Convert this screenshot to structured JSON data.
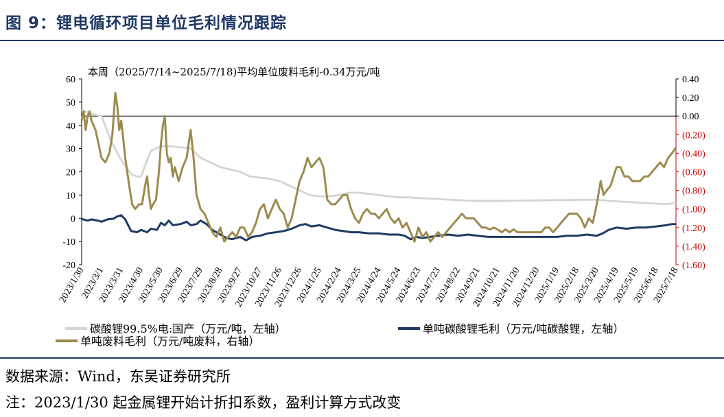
{
  "figure_title": "图 9：锂电循环项目单位毛利情况跟踪",
  "source_text": "数据来源：Wind，东吴证券研究所",
  "note_text": "注：2023/1/30 起金属锂开始计折扣系数，盈利计算方式改变",
  "colors": {
    "title": "#1f3864",
    "gray": "#d4d4d4",
    "navy": "#1f3a63",
    "olive": "#9c8b4e",
    "red_axis": "#c00000"
  },
  "chart_data": {
    "type": "line",
    "annotation": "本周（2025/7/14~2025/7/18)平均单位废料毛利-0.34万元/吨",
    "x_ticks": [
      "2023/1/30",
      "2023/3/1",
      "2023/3/31",
      "2023/4/30",
      "2023/5/30",
      "2023/6/29",
      "2023/7/29",
      "2023/8/28",
      "2023/9/27",
      "2023/10/27",
      "2023/11/26",
      "2023/12/26",
      "2024/1/25",
      "2024/2/24",
      "2024/3/25",
      "2024/4/24",
      "2024/5/24",
      "2024/6/23",
      "2024/7/23",
      "2024/8/22",
      "2024/9/21",
      "2024/10/21",
      "2024/11/20",
      "2024/12/20",
      "2025/1/19",
      "2025/2/18",
      "2025/3/20",
      "2025/4/19",
      "2025/5/19",
      "2025/6/18",
      "2025/7/18"
    ],
    "y_left_ticks": [
      "60",
      "50",
      "40",
      "30",
      "20",
      "10",
      "0",
      "-10",
      "-20"
    ],
    "y_left_lim": [
      -20,
      60
    ],
    "y_right_ticks_black": [
      "0.40",
      "0.20",
      "0.00"
    ],
    "y_right_ticks_red": [
      "(0.20)",
      "(0.40)",
      "(0.60)",
      "(0.80)",
      "(1.00)",
      "(1.20)",
      "(1.40)",
      "(1.60)"
    ],
    "y_right_lim": [
      -1.6,
      0.4
    ],
    "legend": [
      "碳酸锂99.5%电:国产（万元/吨，左轴）",
      "单吨碳酸锂毛利（万元/吨碳酸锂，左轴）",
      "单吨废料毛利（万元/吨废料，右轴）"
    ],
    "series": [
      {
        "name": "碳酸锂99.5%电:国产（万元/吨，左轴）",
        "axis": "left",
        "color": "#d4d4d4",
        "points": [
          [
            0,
            46.5
          ],
          [
            0.5,
            45
          ],
          [
            1,
            44
          ],
          [
            1.5,
            33
          ],
          [
            2,
            25
          ],
          [
            2.5,
            19
          ],
          [
            2.8,
            18
          ],
          [
            3,
            18
          ],
          [
            3.3,
            25
          ],
          [
            3.5,
            29
          ],
          [
            4,
            31
          ],
          [
            4.5,
            31
          ],
          [
            5,
            30.5
          ],
          [
            5.5,
            30
          ],
          [
            6,
            26
          ],
          [
            6.5,
            24
          ],
          [
            7,
            22
          ],
          [
            7.5,
            21
          ],
          [
            8,
            20
          ],
          [
            8.5,
            18
          ],
          [
            9,
            17.5
          ],
          [
            9.5,
            17
          ],
          [
            10,
            16
          ],
          [
            10.5,
            14
          ],
          [
            11,
            12
          ],
          [
            11.5,
            10
          ],
          [
            12,
            9.5
          ],
          [
            12.5,
            9.5
          ],
          [
            13,
            10
          ],
          [
            13.5,
            11
          ],
          [
            14,
            11
          ],
          [
            14.5,
            10.5
          ],
          [
            15,
            10
          ],
          [
            15.5,
            9.5
          ],
          [
            16,
            9
          ],
          [
            16.5,
            9
          ],
          [
            17,
            8.7
          ],
          [
            17.5,
            8.5
          ],
          [
            18,
            8.3
          ],
          [
            18.5,
            8
          ],
          [
            19,
            7.8
          ],
          [
            19.5,
            7.6
          ],
          [
            20,
            7.5
          ],
          [
            21,
            7.5
          ],
          [
            22,
            7.6
          ],
          [
            23,
            7.7
          ],
          [
            24,
            7.8
          ],
          [
            25,
            7.9
          ],
          [
            26,
            8
          ],
          [
            26.5,
            7.6
          ],
          [
            27,
            7.3
          ],
          [
            28,
            6.8
          ],
          [
            29,
            6.3
          ],
          [
            29.5,
            6.1
          ],
          [
            30,
            6.6
          ]
        ]
      },
      {
        "name": "单吨碳酸锂毛利（万元/吨碳酸锂，左轴）",
        "axis": "left",
        "color": "#1f3a63",
        "points": [
          [
            0,
            -0.3
          ],
          [
            0.3,
            -1
          ],
          [
            0.5,
            -0.5
          ],
          [
            0.8,
            -1
          ],
          [
            1,
            -1.5
          ],
          [
            1.3,
            -0.5
          ],
          [
            1.6,
            -0.2
          ],
          [
            1.8,
            0.8
          ],
          [
            2,
            1.3
          ],
          [
            2.2,
            -0.5
          ],
          [
            2.5,
            -5.5
          ],
          [
            2.8,
            -6
          ],
          [
            3,
            -5
          ],
          [
            3.3,
            -6
          ],
          [
            3.5,
            -4.5
          ],
          [
            3.8,
            -5
          ],
          [
            4,
            -2
          ],
          [
            4.2,
            -3
          ],
          [
            4.4,
            -1
          ],
          [
            4.6,
            -3
          ],
          [
            5,
            -2.5
          ],
          [
            5.3,
            -1.5
          ],
          [
            5.5,
            -3
          ],
          [
            5.8,
            -2.5
          ],
          [
            6,
            -1
          ],
          [
            6.3,
            -2.5
          ],
          [
            6.6,
            -5
          ],
          [
            7,
            -7
          ],
          [
            7.3,
            -8.5
          ],
          [
            7.6,
            -9
          ],
          [
            8,
            -8
          ],
          [
            8.3,
            -9.5
          ],
          [
            8.6,
            -8
          ],
          [
            9,
            -7.5
          ],
          [
            9.4,
            -6.5
          ],
          [
            9.8,
            -6
          ],
          [
            10.2,
            -5.5
          ],
          [
            10.6,
            -4.5
          ],
          [
            11,
            -3
          ],
          [
            11.3,
            -2.5
          ],
          [
            11.6,
            -3.5
          ],
          [
            12,
            -3
          ],
          [
            12.4,
            -4
          ],
          [
            12.8,
            -5
          ],
          [
            13.2,
            -5.5
          ],
          [
            13.6,
            -6
          ],
          [
            14,
            -6
          ],
          [
            14.5,
            -6.5
          ],
          [
            15,
            -6.5
          ],
          [
            15.5,
            -7
          ],
          [
            16,
            -7
          ],
          [
            16.3,
            -7.5
          ],
          [
            16.6,
            -9
          ],
          [
            16.9,
            -8
          ],
          [
            17.2,
            -8.5
          ],
          [
            17.6,
            -8
          ],
          [
            18,
            -7.5
          ],
          [
            18.5,
            -7
          ],
          [
            19,
            -7.5
          ],
          [
            19.5,
            -7
          ],
          [
            20,
            -7.5
          ],
          [
            20.5,
            -8
          ],
          [
            21,
            -8
          ],
          [
            21.5,
            -8
          ],
          [
            22,
            -8
          ],
          [
            22.5,
            -8
          ],
          [
            23,
            -8
          ],
          [
            23.5,
            -8
          ],
          [
            24,
            -8
          ],
          [
            24.5,
            -7.5
          ],
          [
            25,
            -7.5
          ],
          [
            25.5,
            -7
          ],
          [
            26,
            -7.5
          ],
          [
            26.3,
            -6.5
          ],
          [
            26.6,
            -5
          ],
          [
            27,
            -4
          ],
          [
            27.5,
            -4.5
          ],
          [
            28,
            -4
          ],
          [
            28.5,
            -4
          ],
          [
            29,
            -3.5
          ],
          [
            29.5,
            -3
          ],
          [
            29.8,
            -2.5
          ],
          [
            30,
            -2.5
          ]
        ]
      },
      {
        "name": "单吨废料毛利（万元/吨废料，右轴）",
        "axis": "right",
        "color": "#9c8b4e",
        "points": [
          [
            0,
            -0.05
          ],
          [
            0.1,
            0.05
          ],
          [
            0.2,
            -0.15
          ],
          [
            0.3,
            0.0
          ],
          [
            0.4,
            0.05
          ],
          [
            0.5,
            -0.05
          ],
          [
            0.7,
            -0.15
          ],
          [
            0.9,
            -0.35
          ],
          [
            1.0,
            -0.45
          ],
          [
            1.2,
            -0.5
          ],
          [
            1.4,
            -0.4
          ],
          [
            1.55,
            -0.2
          ],
          [
            1.7,
            0.25
          ],
          [
            1.8,
            0.1
          ],
          [
            1.9,
            -0.15
          ],
          [
            2.0,
            -0.05
          ],
          [
            2.2,
            -0.45
          ],
          [
            2.4,
            -0.75
          ],
          [
            2.55,
            -0.95
          ],
          [
            2.7,
            -1.0
          ],
          [
            2.9,
            -0.95
          ],
          [
            3.05,
            -0.95
          ],
          [
            3.2,
            -0.75
          ],
          [
            3.3,
            -0.65
          ],
          [
            3.4,
            -0.85
          ],
          [
            3.5,
            -1.0
          ],
          [
            3.6,
            -0.95
          ],
          [
            3.75,
            -0.9
          ],
          [
            3.9,
            -0.6
          ],
          [
            4.0,
            -0.3
          ],
          [
            4.1,
            -0.1
          ],
          [
            4.2,
            0.0
          ],
          [
            4.3,
            -0.4
          ],
          [
            4.4,
            -0.5
          ],
          [
            4.5,
            -0.45
          ],
          [
            4.6,
            -0.65
          ],
          [
            4.7,
            -0.55
          ],
          [
            4.9,
            -0.7
          ],
          [
            5.1,
            -0.55
          ],
          [
            5.3,
            -0.45
          ],
          [
            5.4,
            -0.3
          ],
          [
            5.5,
            -0.15
          ],
          [
            5.65,
            -0.45
          ],
          [
            5.8,
            -0.85
          ],
          [
            6.0,
            -1.0
          ],
          [
            6.2,
            -1.05
          ],
          [
            6.4,
            -1.15
          ],
          [
            6.6,
            -1.25
          ],
          [
            6.8,
            -1.3
          ],
          [
            7.0,
            -1.2
          ],
          [
            7.2,
            -1.35
          ],
          [
            7.4,
            -1.3
          ],
          [
            7.6,
            -1.25
          ],
          [
            7.8,
            -1.3
          ],
          [
            8.0,
            -1.2
          ],
          [
            8.2,
            -1.2
          ],
          [
            8.4,
            -1.3
          ],
          [
            8.6,
            -1.25
          ],
          [
            8.8,
            -1.15
          ],
          [
            9.0,
            -1.0
          ],
          [
            9.2,
            -0.95
          ],
          [
            9.4,
            -1.1
          ],
          [
            9.6,
            -1.0
          ],
          [
            9.8,
            -0.9
          ],
          [
            10.0,
            -1.0
          ],
          [
            10.2,
            -1.05
          ],
          [
            10.4,
            -1.2
          ],
          [
            10.6,
            -1.1
          ],
          [
            10.8,
            -0.9
          ],
          [
            11.0,
            -0.7
          ],
          [
            11.2,
            -0.6
          ],
          [
            11.4,
            -0.45
          ],
          [
            11.6,
            -0.55
          ],
          [
            11.8,
            -0.5
          ],
          [
            12.0,
            -0.45
          ],
          [
            12.2,
            -0.55
          ],
          [
            12.4,
            -0.9
          ],
          [
            12.6,
            -0.95
          ],
          [
            12.8,
            -0.95
          ],
          [
            13.0,
            -0.9
          ],
          [
            13.2,
            -0.85
          ],
          [
            13.4,
            -0.85
          ],
          [
            13.6,
            -1.0
          ],
          [
            13.8,
            -1.1
          ],
          [
            14.0,
            -1.15
          ],
          [
            14.2,
            -1.05
          ],
          [
            14.4,
            -1.0
          ],
          [
            14.6,
            -1.05
          ],
          [
            14.8,
            -1.05
          ],
          [
            15.0,
            -1.1
          ],
          [
            15.2,
            -1.05
          ],
          [
            15.4,
            -1.0
          ],
          [
            15.6,
            -1.1
          ],
          [
            15.8,
            -1.15
          ],
          [
            16.0,
            -1.1
          ],
          [
            16.2,
            -1.2
          ],
          [
            16.4,
            -1.15
          ],
          [
            16.6,
            -1.25
          ],
          [
            16.8,
            -1.35
          ],
          [
            17.0,
            -1.2
          ],
          [
            17.2,
            -1.3
          ],
          [
            17.4,
            -1.25
          ],
          [
            17.6,
            -1.35
          ],
          [
            17.8,
            -1.3
          ],
          [
            18.0,
            -1.25
          ],
          [
            18.2,
            -1.3
          ],
          [
            18.4,
            -1.25
          ],
          [
            18.6,
            -1.2
          ],
          [
            18.8,
            -1.15
          ],
          [
            19.0,
            -1.1
          ],
          [
            19.2,
            -1.05
          ],
          [
            19.4,
            -1.1
          ],
          [
            19.6,
            -1.1
          ],
          [
            19.8,
            -1.1
          ],
          [
            20.0,
            -1.15
          ],
          [
            20.2,
            -1.2
          ],
          [
            20.4,
            -1.2
          ],
          [
            20.6,
            -1.22
          ],
          [
            20.8,
            -1.2
          ],
          [
            21.0,
            -1.22
          ],
          [
            21.2,
            -1.25
          ],
          [
            21.4,
            -1.22
          ],
          [
            21.6,
            -1.25
          ],
          [
            21.8,
            -1.22
          ],
          [
            22.0,
            -1.25
          ],
          [
            22.2,
            -1.25
          ],
          [
            22.4,
            -1.25
          ],
          [
            22.6,
            -1.25
          ],
          [
            22.8,
            -1.25
          ],
          [
            23.0,
            -1.25
          ],
          [
            23.2,
            -1.25
          ],
          [
            23.4,
            -1.2
          ],
          [
            23.6,
            -1.2
          ],
          [
            23.8,
            -1.25
          ],
          [
            24.0,
            -1.2
          ],
          [
            24.2,
            -1.15
          ],
          [
            24.4,
            -1.1
          ],
          [
            24.6,
            -1.05
          ],
          [
            24.8,
            -1.05
          ],
          [
            25.0,
            -1.05
          ],
          [
            25.2,
            -1.1
          ],
          [
            25.4,
            -1.2
          ],
          [
            25.6,
            -1.1
          ],
          [
            25.8,
            -1.15
          ],
          [
            26.0,
            -0.95
          ],
          [
            26.2,
            -0.7
          ],
          [
            26.35,
            -0.85
          ],
          [
            26.5,
            -0.8
          ],
          [
            26.7,
            -0.75
          ],
          [
            26.85,
            -0.65
          ],
          [
            27.0,
            -0.55
          ],
          [
            27.2,
            -0.55
          ],
          [
            27.4,
            -0.65
          ],
          [
            27.6,
            -0.65
          ],
          [
            27.8,
            -0.7
          ],
          [
            28.0,
            -0.7
          ],
          [
            28.2,
            -0.7
          ],
          [
            28.4,
            -0.65
          ],
          [
            28.6,
            -0.65
          ],
          [
            28.8,
            -0.6
          ],
          [
            29.0,
            -0.55
          ],
          [
            29.2,
            -0.5
          ],
          [
            29.4,
            -0.55
          ],
          [
            29.6,
            -0.45
          ],
          [
            29.8,
            -0.4
          ],
          [
            30.0,
            -0.34
          ]
        ]
      }
    ]
  }
}
